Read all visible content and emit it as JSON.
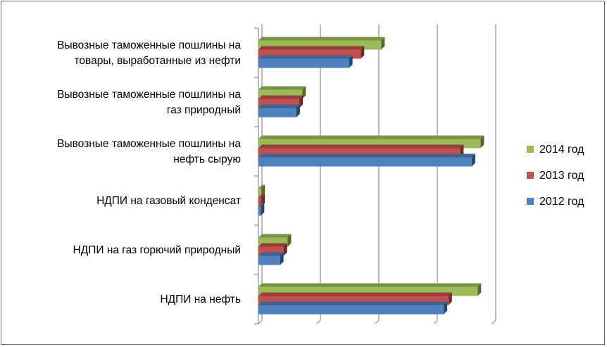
{
  "chart_data": {
    "type": "bar",
    "orientation": "horizontal",
    "three_d": true,
    "title": "",
    "xlabel": "",
    "ylabel": "",
    "xlim": [
      0,
      4
    ],
    "grid": true,
    "legend_position": "right",
    "categories": [
      "Вывозные таможенные пошлины на товары, выработанные из нефти",
      "Вывозные таможенные пошлины на газ природный",
      "Вывозные таможенные пошлины на нефть сырую",
      "НДПИ на газовый конденсат",
      "НДПИ на газ горючий природный",
      "НДПИ на нефть"
    ],
    "category_label_lines": [
      [
        "Вывозные таможенные пошлины на",
        "товары, выработанные из нефти"
      ],
      [
        "Вывозные таможенные пошлины на",
        "газ природный"
      ],
      [
        "Вывозные таможенные пошлины на",
        "нефть сырую"
      ],
      [
        "НДПИ на газовый конденсат"
      ],
      [
        "НДПИ на газ горючий природный"
      ],
      [
        "НДПИ на нефть"
      ]
    ],
    "series": [
      {
        "name": "2014 год",
        "color": "#9bbb59",
        "values": [
          2.1,
          0.75,
          3.8,
          0.05,
          0.5,
          3.75
        ]
      },
      {
        "name": "2013 год",
        "color": "#c0504d",
        "values": [
          1.75,
          0.7,
          3.45,
          0.05,
          0.43,
          3.25
        ]
      },
      {
        "name": "2012 год",
        "color": "#4f81bd",
        "values": [
          1.55,
          0.65,
          3.65,
          0.04,
          0.37,
          3.17
        ]
      }
    ]
  }
}
